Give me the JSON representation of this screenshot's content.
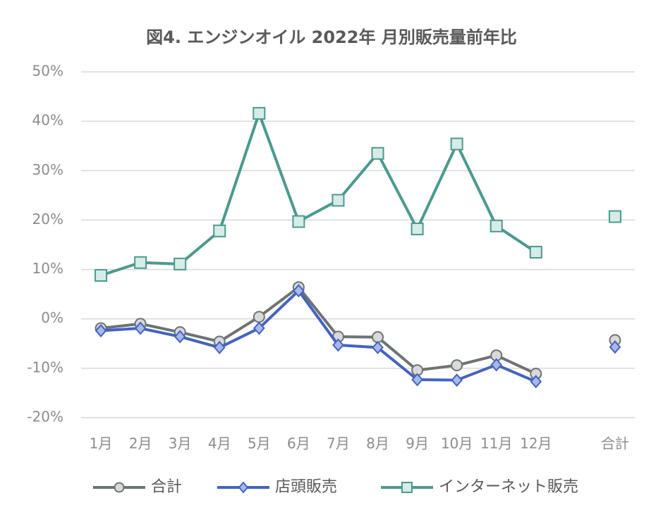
{
  "chart_data": {
    "type": "line",
    "title": "図4. エンジンオイル 2022年 月別販売量前年比",
    "categories": [
      "1月",
      "2月",
      "3月",
      "4月",
      "5月",
      "6月",
      "7月",
      "8月",
      "9月",
      "10月",
      "11月",
      "12月",
      null,
      "合計"
    ],
    "series": [
      {
        "name": "合計",
        "color": "#6d7375",
        "marker": "circle",
        "marker_fill": "#d9d9d9",
        "values": [
          -1.9,
          -1.0,
          -2.7,
          -4.6,
          0.4,
          6.4,
          -3.6,
          -3.7,
          -10.4,
          -9.4,
          -7.4,
          -11.1,
          null,
          -4.3
        ]
      },
      {
        "name": "店頭販売",
        "color": "#4263c4",
        "marker": "diamond",
        "marker_fill": "#a9b8e6",
        "values": [
          -2.4,
          -1.9,
          -3.6,
          -5.8,
          -1.9,
          5.7,
          -5.3,
          -5.8,
          -12.3,
          -12.4,
          -9.3,
          -12.7,
          null,
          -5.7
        ]
      },
      {
        "name": "インターネット販売",
        "color": "#4a9a8e",
        "marker": "square",
        "marker_fill": "#d6ece8",
        "values": [
          8.8,
          11.4,
          11.1,
          17.8,
          41.6,
          19.7,
          24.0,
          33.5,
          18.2,
          35.4,
          18.8,
          13.5,
          null,
          20.7
        ]
      }
    ],
    "ylim": [
      -20,
      50
    ],
    "yticks": [
      {
        "value": -20,
        "label": "-20%"
      },
      {
        "value": -10,
        "label": "-10%"
      },
      {
        "value": 0,
        "label": "0%"
      },
      {
        "value": 10,
        "label": "10%"
      },
      {
        "value": 20,
        "label": "20%"
      },
      {
        "value": 30,
        "label": "30%"
      },
      {
        "value": 40,
        "label": "40%"
      },
      {
        "value": 50,
        "label": "50%"
      }
    ],
    "grid": true,
    "legend": "bottom"
  }
}
